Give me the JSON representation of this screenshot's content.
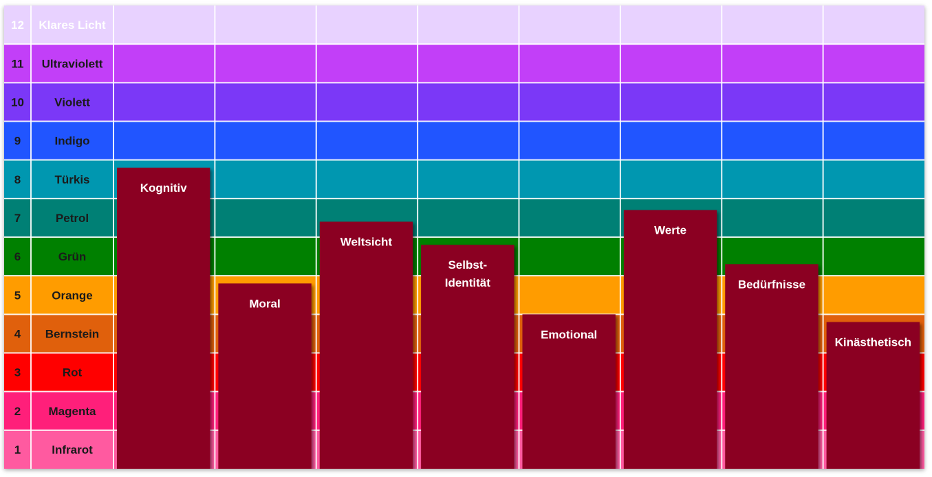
{
  "chart_data": {
    "type": "bar",
    "levels": [
      {
        "number": "1",
        "name": "Infrarot",
        "color": "#ff5aa0",
        "text_color": "#1a1a1a"
      },
      {
        "number": "2",
        "name": "Magenta",
        "color": "#ff1f7a",
        "text_color": "#1a1a1a"
      },
      {
        "number": "3",
        "name": "Rot",
        "color": "#ff0000",
        "text_color": "#1a1a1a"
      },
      {
        "number": "4",
        "name": "Bernstein",
        "color": "#e0600c",
        "text_color": "#1a1a1a"
      },
      {
        "number": "5",
        "name": "Orange",
        "color": "#ff9c00",
        "text_color": "#1a1a1a"
      },
      {
        "number": "6",
        "name": "Grün",
        "color": "#008000",
        "text_color": "#1a1a1a"
      },
      {
        "number": "7",
        "name": "Petrol",
        "color": "#008075",
        "text_color": "#1a1a1a"
      },
      {
        "number": "8",
        "name": "Türkis",
        "color": "#0097b0",
        "text_color": "#1a1a1a"
      },
      {
        "number": "9",
        "name": "Indigo",
        "color": "#2155ff",
        "text_color": "#1a1a1a"
      },
      {
        "number": "10",
        "name": "Violett",
        "color": "#7b38f7",
        "text_color": "#1a1a1a"
      },
      {
        "number": "11",
        "name": "Ultraviolett",
        "color": "#c23ff8",
        "text_color": "#1a1a1a"
      },
      {
        "number": "12",
        "name": "Klares Licht",
        "color": "#e8d2ff",
        "text_color": "#ffffff"
      }
    ],
    "categories": [
      "Kognitiv",
      "Moral",
      "Weltsicht",
      "Selbst-\nIdentität",
      "Emotional",
      "Werte",
      "Bedürfnisse",
      "Kinästhetisch"
    ],
    "values": [
      7.8,
      4.8,
      6.4,
      5.8,
      4.0,
      6.7,
      5.3,
      3.8
    ],
    "bar_color": "#8b0020",
    "ylim": [
      0,
      12
    ]
  }
}
